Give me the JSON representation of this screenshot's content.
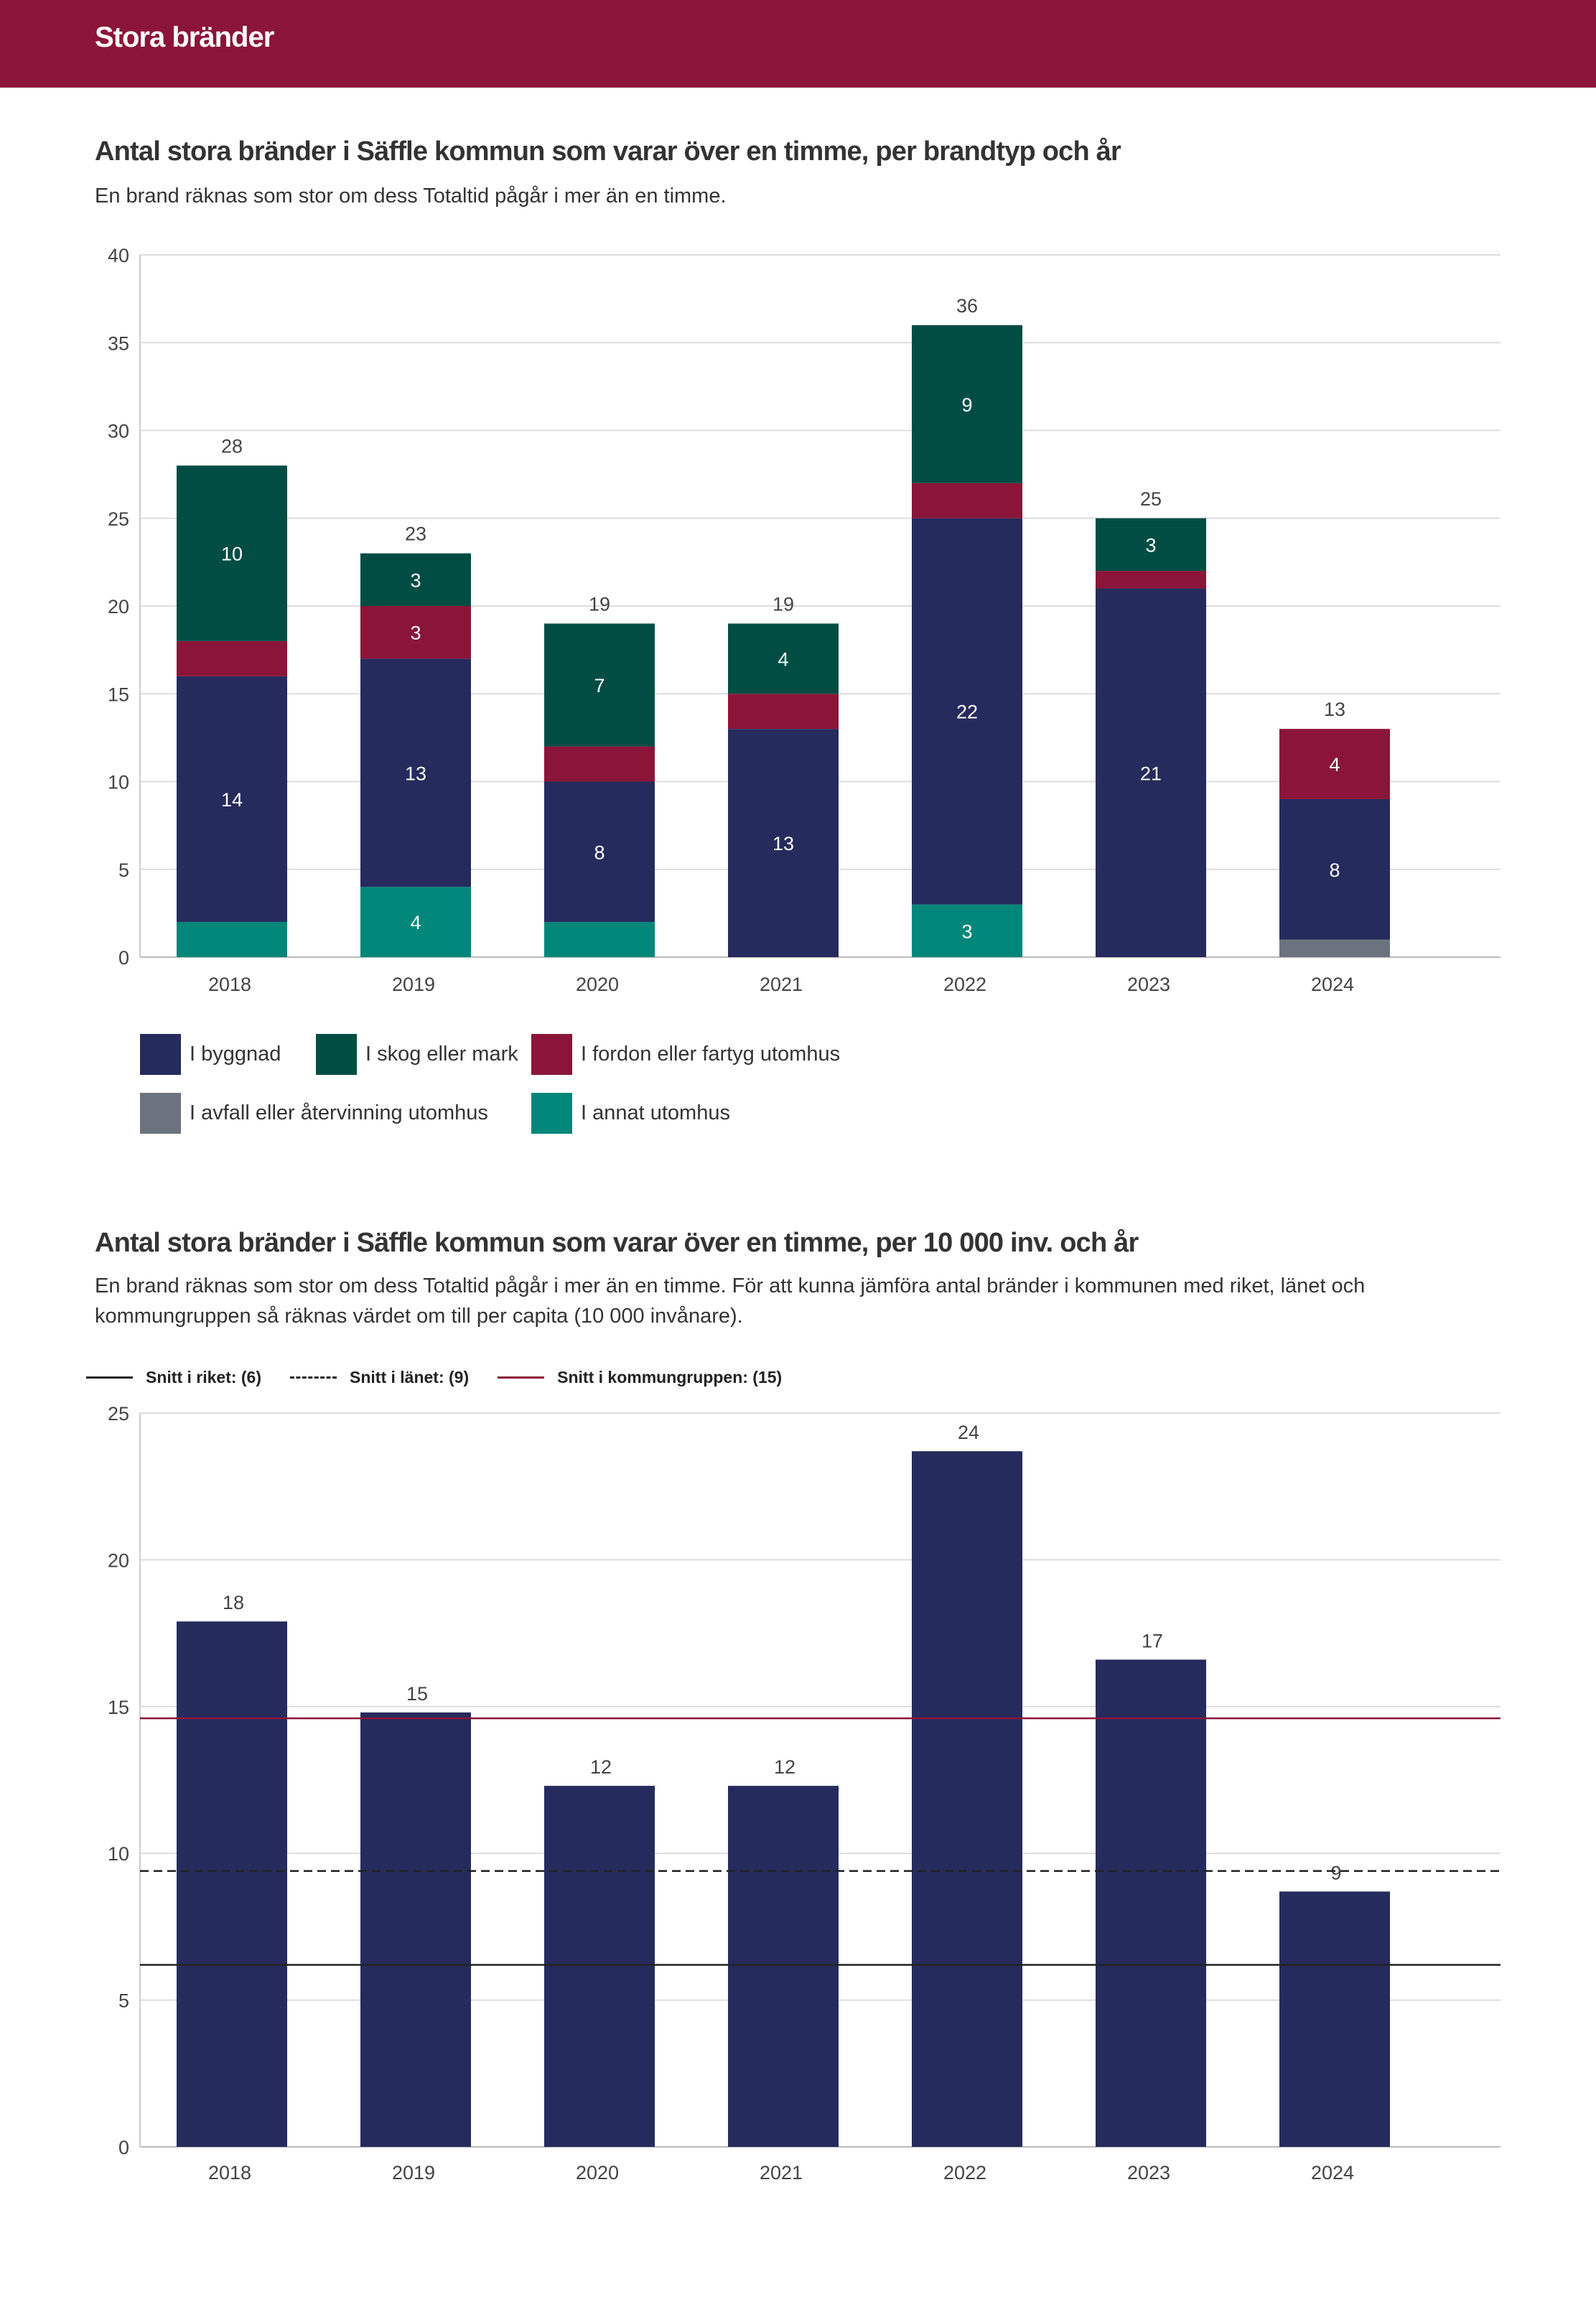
{
  "header": {
    "title": "Stora bränder"
  },
  "chart_data": [
    {
      "type": "bar",
      "stacked": true,
      "title": "Antal stora bränder i Säffle kommun som varar över en timme, per brandtyp och år",
      "subtitle": "En brand räknas som stor om dess Totaltid pågår i mer än en timme.",
      "categories": [
        "2018",
        "2019",
        "2020",
        "2021",
        "2022",
        "2023",
        "2024"
      ],
      "ylim": [
        0,
        40
      ],
      "yticks": [
        0,
        5,
        10,
        15,
        20,
        25,
        30,
        35,
        40
      ],
      "grid": true,
      "legend_position": "bottom-left",
      "series": [
        {
          "name": "I annat utomhus",
          "color": "#00877a",
          "values": [
            2,
            4,
            2,
            0,
            3,
            0,
            0
          ]
        },
        {
          "name": "I avfall eller återvinning utomhus",
          "color": "#6b747e",
          "values": [
            0,
            0,
            0,
            0,
            0,
            0,
            1
          ]
        },
        {
          "name": "I byggnad",
          "color": "#252b5c",
          "values": [
            14,
            13,
            8,
            13,
            22,
            21,
            8
          ]
        },
        {
          "name": "I fordon eller fartyg utomhus",
          "color": "#8b1538",
          "values": [
            2,
            3,
            2,
            2,
            2,
            1,
            4
          ]
        },
        {
          "name": "I skog eller mark",
          "color": "#014d44",
          "values": [
            10,
            3,
            7,
            4,
            9,
            3,
            0
          ]
        }
      ],
      "legend_order": [
        2,
        4,
        3,
        1,
        0
      ],
      "totals": [
        28,
        23,
        19,
        19,
        36,
        25,
        13
      ]
    },
    {
      "type": "bar",
      "title": "Antal stora bränder i Säffle kommun som varar över en timme, per 10 000 inv. och år",
      "subtitle": "En brand räknas som stor om dess Totaltid pågår i mer än en timme. För att kunna jämföra antal bränder i kommunen med riket, länet och kommungruppen så räknas värdet om till per capita (10 000 invånare).",
      "categories": [
        "2018",
        "2019",
        "2020",
        "2021",
        "2022",
        "2023",
        "2024"
      ],
      "values": [
        17.9,
        14.8,
        12.3,
        12.3,
        23.7,
        16.6,
        8.7
      ],
      "labels": [
        "18",
        "15",
        "12",
        "12",
        "24",
        "17",
        "9"
      ],
      "color": "#252b5c",
      "ylim": [
        0,
        25
      ],
      "yticks": [
        0,
        5,
        10,
        15,
        20,
        25
      ],
      "grid": true,
      "legend_position": "top-left",
      "reference_lines": [
        {
          "name": "Snitt i riket: (6)",
          "value": 6.2,
          "color": "#222222",
          "style": "solid"
        },
        {
          "name": "Snitt i länet: (9)",
          "value": 9.4,
          "color": "#222222",
          "style": "dashed"
        },
        {
          "name": "Snitt i kommungruppen: (15)",
          "value": 14.6,
          "color": "#8b1538",
          "style": "solid"
        }
      ]
    }
  ]
}
